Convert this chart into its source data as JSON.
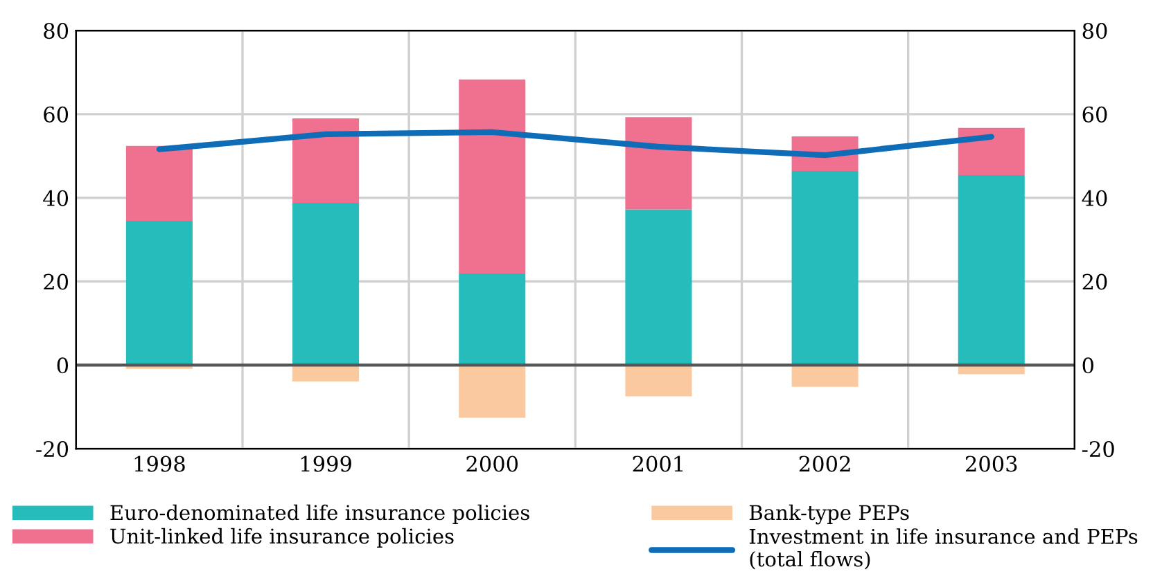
{
  "chart_data": {
    "type": "bar",
    "stacked": true,
    "categories": [
      "1998",
      "1999",
      "2000",
      "2001",
      "2002",
      "2003"
    ],
    "series": [
      {
        "name": "Euro-denominated life insurance policies",
        "color": "#27bcbc",
        "values": [
          34.5,
          38.8,
          21.9,
          37.2,
          46.4,
          45.4
        ]
      },
      {
        "name": "Unit-linked life insurance policies",
        "color": "#f07090",
        "values": [
          17.9,
          20.2,
          46.4,
          22.1,
          8.3,
          11.3
        ]
      },
      {
        "name": "Bank-type PEPs",
        "color": "#fbc9a0",
        "values": [
          -0.9,
          -3.9,
          -12.6,
          -7.5,
          -5.2,
          -2.2
        ]
      },
      {
        "name": "Investment in life insurance and PEPs\n(total flows)",
        "type": "line",
        "color": "#0f6db8",
        "values": [
          51.6,
          55.2,
          55.7,
          52.2,
          50.2,
          54.6
        ]
      }
    ],
    "ylim": [
      -20,
      80
    ],
    "yticks": [
      -20,
      0,
      20,
      40,
      60,
      80
    ],
    "y2lim": [
      -20,
      80
    ],
    "y2ticks": [
      -20,
      0,
      20,
      40,
      60,
      80
    ],
    "grid": true,
    "legend": "bottom",
    "line_style": "solid",
    "marker": "none"
  }
}
